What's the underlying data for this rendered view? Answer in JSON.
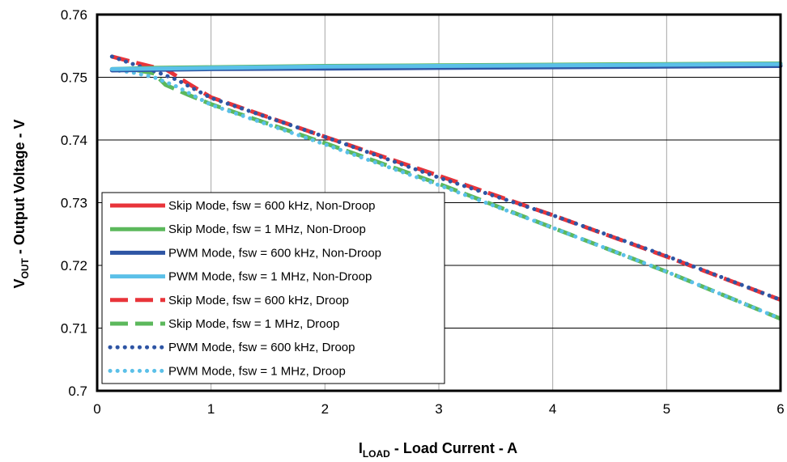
{
  "chart_data": {
    "type": "line",
    "xlabel_main": "I",
    "xlabel_sub": "LOAD",
    "xlabel_rest": " - Load Current - A",
    "ylabel_main": "V",
    "ylabel_sub": "OUT",
    "ylabel_rest": " - Output Voltage - V",
    "xlim": [
      0,
      6
    ],
    "ylim": [
      0.7,
      0.76
    ],
    "x_ticks": [
      "0",
      "1",
      "2",
      "3",
      "4",
      "5",
      "6"
    ],
    "y_ticks": [
      "0.7",
      "0.71",
      "0.72",
      "0.73",
      "0.74",
      "0.75",
      "0.76"
    ],
    "grid": true,
    "legend_position": "bottom-left",
    "series": [
      {
        "name": "Skip Mode, fsw = 600 kHz, Non-Droop",
        "color": "#e8343a",
        "dash": "solid",
        "x": [
          0.13,
          0.5,
          1,
          2,
          3,
          4,
          5,
          6
        ],
        "y": [
          0.7512,
          0.7514,
          0.7515,
          0.7516,
          0.7517,
          0.7518,
          0.7519,
          0.752
        ]
      },
      {
        "name": "Skip Mode, fsw = 1 MHz, Non-Droop",
        "color": "#5cb85c",
        "dash": "solid",
        "x": [
          0.13,
          0.5,
          1,
          2,
          3,
          4,
          5,
          6
        ],
        "y": [
          0.7513,
          0.7515,
          0.7516,
          0.7518,
          0.7519,
          0.752,
          0.7521,
          0.7522
        ]
      },
      {
        "name": "PWM Mode, fsw = 600 kHz, Non-Droop",
        "color": "#2e55a4",
        "dash": "solid",
        "x": [
          0.13,
          0.5,
          1,
          2,
          3,
          4,
          5,
          6
        ],
        "y": [
          0.7511,
          0.7512,
          0.7513,
          0.7514,
          0.7515,
          0.7516,
          0.7517,
          0.7518
        ]
      },
      {
        "name": "PWM Mode, fsw = 1 MHz, Non-Droop",
        "color": "#5bc0e8",
        "dash": "solid",
        "x": [
          0.13,
          0.5,
          1,
          2,
          3,
          4,
          5,
          6
        ],
        "y": [
          0.7513,
          0.7514,
          0.7515,
          0.7517,
          0.7518,
          0.7519,
          0.752,
          0.7521
        ]
      },
      {
        "name": "Skip Mode, fsw = 600 kHz, Droop",
        "color": "#e8343a",
        "dash": "dash",
        "x": [
          0.13,
          0.3,
          0.5,
          0.6,
          0.8,
          1,
          2,
          3,
          4,
          5,
          6
        ],
        "y": [
          0.7533,
          0.7525,
          0.7516,
          0.7513,
          0.749,
          0.7468,
          0.7405,
          0.7343,
          0.728,
          0.7214,
          0.7145
        ]
      },
      {
        "name": "Skip Mode, fsw = 1 MHz, Droop",
        "color": "#5cb85c",
        "dash": "dash",
        "x": [
          0.13,
          0.3,
          0.5,
          0.6,
          0.8,
          1,
          2,
          3,
          4,
          5,
          6
        ],
        "y": [
          0.7512,
          0.7513,
          0.7506,
          0.7488,
          0.7472,
          0.7457,
          0.7395,
          0.733,
          0.726,
          0.719,
          0.7115
        ]
      },
      {
        "name": "PWM Mode, fsw = 600 kHz, Droop",
        "color": "#2e55a4",
        "dash": "dot",
        "x": [
          0.13,
          0.3,
          0.5,
          0.7,
          1,
          2,
          3,
          4,
          5,
          6
        ],
        "y": [
          0.7533,
          0.7522,
          0.751,
          0.7496,
          0.7467,
          0.7405,
          0.734,
          0.728,
          0.7215,
          0.7145
        ]
      },
      {
        "name": "PWM Mode, fsw = 1 MHz, Droop",
        "color": "#5bc0e8",
        "dash": "dot",
        "x": [
          0.13,
          0.3,
          0.5,
          0.7,
          1,
          2,
          3,
          4,
          5,
          6
        ],
        "y": [
          0.7512,
          0.7508,
          0.75,
          0.7485,
          0.7456,
          0.7393,
          0.7328,
          0.726,
          0.719,
          0.7115
        ]
      }
    ]
  }
}
